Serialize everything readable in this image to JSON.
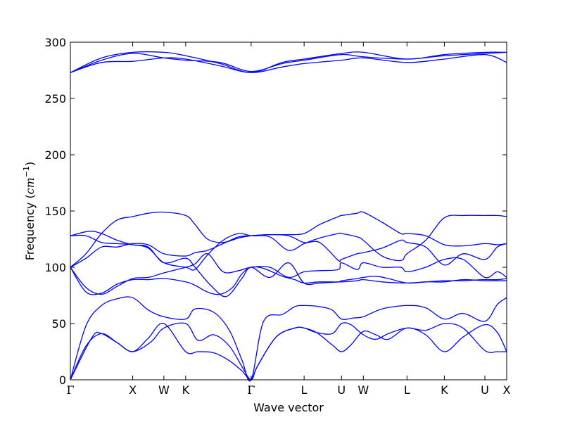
{
  "chart_data": {
    "type": "line",
    "xlabel": "Wave vector",
    "ylabel": "Frequency (cm⁻¹)",
    "ylabel_parts": {
      "prefix": "Frequency (",
      "unit": "cm",
      "exp": "−1",
      "suffix": ")"
    },
    "ylim": [
      0,
      300
    ],
    "yticks": [
      0,
      50,
      100,
      150,
      200,
      250,
      300
    ],
    "xlim": [
      0,
      7.0
    ],
    "grid": false,
    "color": "#0000ff",
    "high_symmetry_points": [
      {
        "label": "Γ",
        "x": 0.0
      },
      {
        "label": "X",
        "x": 1.0
      },
      {
        "label": "W",
        "x": 1.5
      },
      {
        "label": "K",
        "x": 1.85
      },
      {
        "label": "Γ",
        "x": 2.9
      },
      {
        "label": "L",
        "x": 3.75
      },
      {
        "label": "U",
        "x": 4.35
      },
      {
        "label": "W",
        "x": 4.7
      },
      {
        "label": "L",
        "x": 5.4
      },
      {
        "label": "K",
        "x": 6.0
      },
      {
        "label": "U",
        "x": 6.65
      },
      {
        "label": "X",
        "x": 7.0
      }
    ],
    "series": [
      {
        "x": [
          0,
          0.35,
          0.5,
          0.75,
          1.0,
          1.25,
          1.5,
          1.85,
          2.05,
          2.3,
          2.55,
          2.75,
          2.9,
          3.0,
          3.3,
          3.6,
          3.75,
          3.95,
          4.2,
          4.35,
          4.5,
          4.7,
          4.9,
          5.1,
          5.4,
          5.7,
          6.0,
          6.3,
          6.65,
          6.85,
          7.0
        ],
        "y": [
          0,
          38,
          41,
          33,
          25,
          37,
          50,
          25,
          25,
          24,
          17,
          8,
          0,
          12,
          38,
          46,
          46,
          42,
          31,
          25,
          31,
          43,
          40,
          36,
          46,
          40,
          25,
          38,
          49,
          42,
          25
        ]
      },
      {
        "x": [
          0,
          0.25,
          0.5,
          0.75,
          1.0,
          1.3,
          1.5,
          1.85,
          2.05,
          2.3,
          2.55,
          2.75,
          2.9,
          3.0,
          3.3,
          3.6,
          3.75,
          3.95,
          4.2,
          4.35,
          4.5,
          4.7,
          4.9,
          5.1,
          5.4,
          5.7,
          6.0,
          6.3,
          6.65,
          6.85,
          7.0
        ],
        "y": [
          0,
          30,
          41,
          33,
          25,
          34,
          46,
          50,
          35,
          40,
          30,
          12,
          0,
          12,
          38,
          46,
          46,
          42,
          41,
          50,
          49,
          40,
          36,
          41,
          46,
          44,
          50,
          46,
          26,
          25,
          25
        ]
      },
      {
        "x": [
          0,
          0.25,
          0.5,
          0.75,
          1.0,
          1.25,
          1.5,
          1.85,
          2.0,
          2.3,
          2.55,
          2.75,
          2.9,
          3.1,
          3.4,
          3.6,
          3.75,
          4.0,
          4.2,
          4.35,
          4.55,
          4.7,
          5.0,
          5.4,
          5.7,
          6.0,
          6.3,
          6.65,
          6.85,
          7.0
        ],
        "y": [
          0,
          48,
          66,
          72,
          73,
          62,
          56,
          54,
          63,
          60,
          44,
          18,
          0,
          52,
          58,
          65,
          66,
          65,
          62,
          54,
          55,
          56,
          63,
          66,
          64,
          54,
          59,
          52,
          67,
          73
        ]
      },
      {
        "x": [
          0,
          0.3,
          0.5,
          0.75,
          1.0,
          1.25,
          1.5,
          1.85,
          2.0,
          2.25,
          2.5,
          2.75,
          2.9,
          3.2,
          3.5,
          3.75,
          4.0,
          4.3,
          4.35,
          4.6,
          4.7,
          5.0,
          5.4,
          5.7,
          6.0,
          6.3,
          6.65,
          6.85,
          7.0
        ],
        "y": [
          128,
          132,
          130,
          124,
          120,
          118,
          104,
          108,
          100,
          84,
          74,
          90,
          100,
          91,
          104,
          86,
          86,
          87,
          87,
          88,
          89,
          87,
          86,
          87,
          87,
          89,
          88,
          88,
          88
        ]
      },
      {
        "x": [
          0,
          0.25,
          0.5,
          0.75,
          1.0,
          1.25,
          1.5,
          1.85,
          2.0,
          2.2,
          2.4,
          2.6,
          2.75,
          2.9,
          3.1,
          3.4,
          3.6,
          3.75,
          4.0,
          4.3,
          4.35,
          4.6,
          4.7,
          4.9,
          5.1,
          5.4,
          5.7,
          6.0,
          6.3,
          6.6,
          6.85,
          7.0
        ],
        "y": [
          100,
          78,
          77,
          85,
          89,
          89,
          90,
          87,
          84,
          78,
          76,
          82,
          94,
          100,
          99,
          92,
          89,
          86,
          87,
          87,
          88,
          90,
          91,
          92,
          90,
          86,
          87,
          88,
          88,
          89,
          89,
          90
        ]
      },
      {
        "x": [
          0,
          0.25,
          0.5,
          0.75,
          1.0,
          1.25,
          1.5,
          1.85,
          2.0,
          2.2,
          2.45,
          2.7,
          2.9,
          3.2,
          3.5,
          3.75,
          4.0,
          4.3,
          4.35,
          4.6,
          4.7,
          5.0,
          5.3,
          5.4,
          5.7,
          6.0,
          6.3,
          6.65,
          6.85,
          7.0
        ],
        "y": [
          100,
          82,
          76,
          83,
          90,
          91,
          95,
          100,
          103,
          112,
          96,
          97,
          100,
          100,
          91,
          96,
          97,
          98,
          104,
          98,
          104,
          100,
          100,
          96,
          100,
          107,
          107,
          91,
          96,
          91
        ]
      },
      {
        "x": [
          0,
          0.25,
          0.5,
          0.75,
          1.0,
          1.25,
          1.5,
          1.85,
          2.0,
          2.2,
          2.45,
          2.7,
          2.9,
          3.2,
          3.5,
          3.75,
          4.0,
          4.3,
          4.35,
          4.6,
          4.7,
          5.0,
          5.3,
          5.4,
          5.7,
          6.0,
          6.3,
          6.65,
          6.85,
          7.0
        ],
        "y": [
          100,
          108,
          118,
          118,
          121,
          120,
          112,
          110,
          113,
          115,
          121,
          127,
          128,
          129,
          128,
          122,
          122,
          106,
          107,
          112,
          113,
          117,
          124,
          122,
          118,
          102,
          112,
          107,
          118,
          121
        ]
      },
      {
        "x": [
          0,
          0.25,
          0.5,
          0.75,
          1.0,
          1.25,
          1.5,
          1.85,
          2.0,
          2.2,
          2.45,
          2.7,
          2.9,
          3.2,
          3.5,
          3.75,
          4.0,
          4.3,
          4.35,
          4.6,
          4.7,
          5.0,
          5.3,
          5.4,
          5.7,
          6.0,
          6.3,
          6.65,
          6.85,
          7.0
        ],
        "y": [
          100,
          112,
          130,
          142,
          145,
          148,
          149,
          146,
          138,
          125,
          122,
          126,
          128,
          129,
          129,
          130,
          138,
          145,
          146,
          148,
          149,
          140,
          130,
          130,
          128,
          120,
          119,
          121,
          120,
          121
        ]
      },
      {
        "x": [
          0,
          0.25,
          0.5,
          0.75,
          1.0,
          1.25,
          1.5,
          1.85,
          2.0,
          2.2,
          2.45,
          2.7,
          2.9,
          3.2,
          3.5,
          3.75,
          4.0,
          4.3,
          4.35,
          4.6,
          4.7,
          5.0,
          5.3,
          5.4,
          5.7,
          6.0,
          6.3,
          6.65,
          6.85,
          7.0
        ],
        "y": [
          128,
          128,
          122,
          121,
          120,
          117,
          104,
          100,
          98,
          111,
          124,
          130,
          128,
          127,
          115,
          121,
          126,
          130,
          130,
          127,
          124,
          110,
          106,
          112,
          124,
          144,
          146,
          146,
          146,
          145
        ]
      },
      {
        "x": [
          0,
          0.5,
          1.0,
          1.5,
          1.85,
          2.4,
          2.9,
          3.4,
          3.75,
          4.35,
          4.7,
          5.4,
          6.0,
          6.65,
          7.0
        ],
        "y": [
          273,
          282,
          283,
          286,
          285,
          279,
          273,
          278,
          281,
          284,
          286,
          282,
          285,
          289,
          282
        ]
      },
      {
        "x": [
          0,
          0.5,
          1.0,
          1.5,
          1.85,
          2.4,
          2.9,
          3.4,
          3.75,
          4.35,
          4.7,
          5.4,
          6.0,
          6.65,
          7.0
        ],
        "y": [
          273,
          284,
          290,
          286,
          284,
          282,
          274,
          281,
          284,
          289,
          287,
          285,
          288,
          290,
          291
        ]
      },
      {
        "x": [
          0,
          0.5,
          1.0,
          1.5,
          1.85,
          2.4,
          2.9,
          3.4,
          3.75,
          4.35,
          4.7,
          5.4,
          6.0,
          6.65,
          7.0
        ],
        "y": [
          273,
          286,
          291,
          291,
          288,
          281,
          273,
          282,
          285,
          290,
          291,
          285,
          289,
          291,
          291
        ]
      }
    ]
  }
}
